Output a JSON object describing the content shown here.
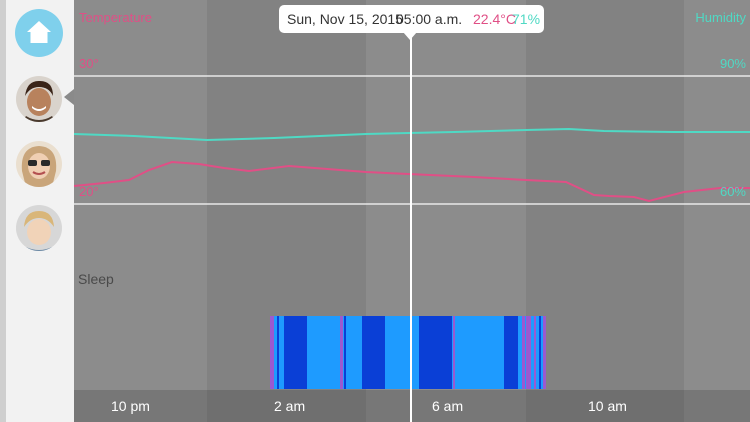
{
  "tooltip": {
    "date": "Sun, Nov 15, 2015",
    "time": "05:00 a.m.",
    "temperature": "22.4°C",
    "humidity": "71%"
  },
  "axes": {
    "left_title": "Temperature",
    "right_title": "Humidity",
    "left_ticks": [
      "30°",
      "20°"
    ],
    "right_ticks": [
      "90%",
      "60%"
    ]
  },
  "sleep_label": "Sleep",
  "time_labels": [
    "10 pm",
    "2 am",
    "6 am",
    "10 am"
  ],
  "colors": {
    "temperature": "#e04f86",
    "humidity": "#4fd9c4",
    "sleep_light": "#1e9bff",
    "sleep_deep": "#0a3fd6",
    "sleep_awake": "#9b59d0",
    "home_button": "#7fd0ec"
  },
  "sidebar": {
    "items": [
      {
        "icon": "home-icon"
      },
      {
        "icon": "avatar-man"
      },
      {
        "icon": "avatar-woman"
      },
      {
        "icon": "avatar-child"
      }
    ]
  }
}
